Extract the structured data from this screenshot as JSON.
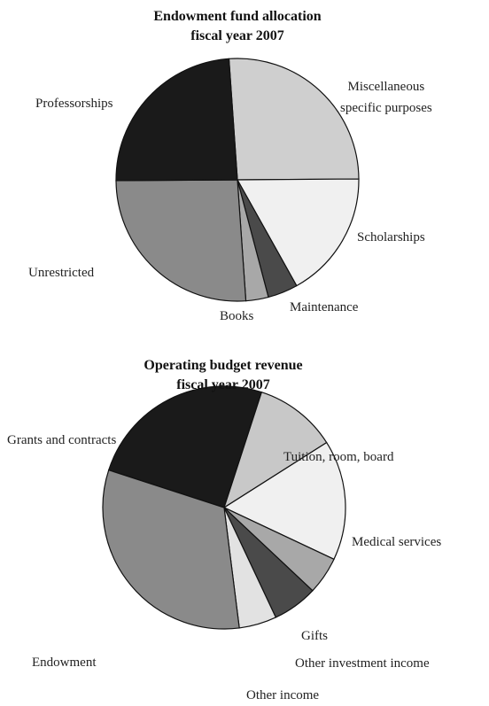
{
  "chart_data": [
    {
      "type": "pie",
      "title": "Endowment fund allocation\nfiscal year 2007",
      "categories": [
        "Miscellaneous\nspecific purposes",
        "Scholarships",
        "Maintenance",
        "Books",
        "Unrestricted",
        "Professorships"
      ],
      "values": [
        26,
        17,
        4,
        3,
        26,
        24
      ],
      "colors": [
        "#cfcfcf",
        "#f0f0f0",
        "#4a4a4a",
        "#a8a8a8",
        "#8a8a8a",
        "#1a1a1a"
      ]
    },
    {
      "type": "pie",
      "title": "Operating budget revenue\nfiscal year 2007",
      "categories": [
        "Grants and contracts",
        "Tuition, room, board",
        "Medical services",
        "Gifts",
        "Other investment income",
        "Other income",
        "Endowment"
      ],
      "values": [
        25,
        11,
        16,
        5,
        6,
        5,
        32
      ],
      "colors": [
        "#1a1a1a",
        "#c8c8c8",
        "#f0f0f0",
        "#a8a8a8",
        "#4a4a4a",
        "#e2e2e2",
        "#8a8a8a"
      ]
    }
  ]
}
